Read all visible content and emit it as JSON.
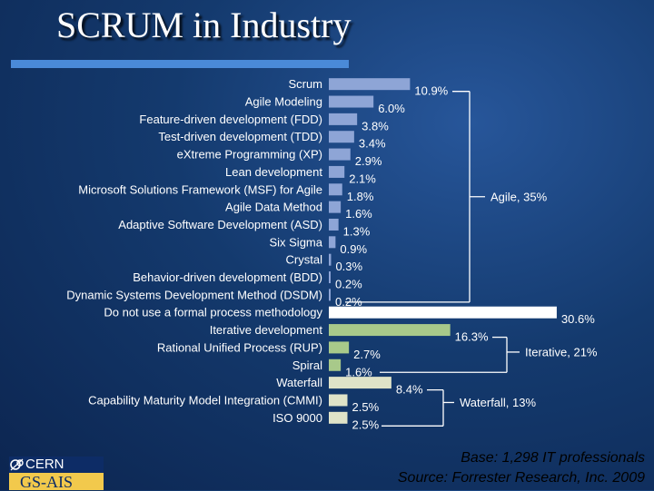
{
  "slide": {
    "title": "SCRUM in Industry"
  },
  "chart_data": {
    "type": "bar",
    "orientation": "horizontal",
    "value_unit": "%",
    "categories": [
      "Scrum",
      "Agile Modeling",
      "Feature-driven development (FDD)",
      "Test-driven development (TDD)",
      "eXtreme Programming (XP)",
      "Lean development",
      "Microsoft Solutions Framework (MSF) for Agile",
      "Agile Data Method",
      "Adaptive Software Development (ASD)",
      "Six Sigma",
      "Crystal",
      "Behavior-driven development (BDD)",
      "Dynamic Systems Development Method (DSDM)",
      "Do not use a formal process methodology",
      "Iterative development",
      "Rational Unified Process (RUP)",
      "Spiral",
      "Waterfall",
      "Capability Maturity Model Integration (CMMI)",
      "ISO 9000"
    ],
    "values": [
      10.9,
      6.0,
      3.8,
      3.4,
      2.9,
      2.1,
      1.8,
      1.6,
      1.3,
      0.9,
      0.3,
      0.2,
      0.2,
      30.6,
      16.3,
      2.7,
      1.6,
      8.4,
      2.5,
      2.5
    ],
    "labels": [
      "10.9%",
      "6.0%",
      "3.8%",
      "3.4%",
      "2.9%",
      "2.1%",
      "1.8%",
      "1.6%",
      "1.3%",
      "0.9%",
      "0.3%",
      "0.2%",
      "0.2%",
      "30.6%",
      "16.3%",
      "2.7%",
      "1.6%",
      "8.4%",
      "2.5%",
      "2.5%"
    ],
    "groups": [
      {
        "name": "Agile",
        "label": "Agile, 35%",
        "color": "#8ea5d6",
        "indices": [
          0,
          1,
          2,
          3,
          4,
          5,
          6,
          7,
          8,
          9,
          10,
          11,
          12
        ]
      },
      {
        "name": "None",
        "label": "",
        "color": "#ffffff",
        "indices": [
          13
        ]
      },
      {
        "name": "Iterative",
        "label": "Iterative, 21%",
        "color": "#a8c98a",
        "indices": [
          14,
          15,
          16
        ]
      },
      {
        "name": "Waterfall",
        "label": "Waterfall, 13%",
        "color": "#dfe3c8",
        "indices": [
          17,
          18,
          19
        ]
      }
    ],
    "grid": false,
    "legend": "none"
  },
  "footer": {
    "base_note": "Base: 1,298 IT professionals",
    "source_note": "Source: Forrester Research, Inc. 2009"
  },
  "logo": {
    "top_text": "CERN",
    "bottom_text": "GS-AIS"
  }
}
